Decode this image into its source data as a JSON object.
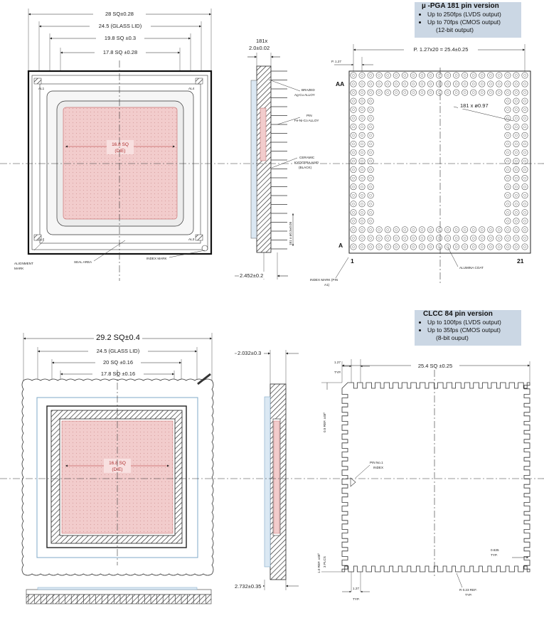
{
  "pga": {
    "box": {
      "title": "µ -PGA 181 pin version",
      "items": [
        "Up to 250fps (LVDS output)",
        "Up to 70fps (CMOS output)"
      ],
      "note": "(12-bit output)"
    },
    "top_view": {
      "dim_overall": "28 SQ±0.28",
      "dim_glass": "24.5 (GLASS LID)",
      "dim_inner": "19.8 SQ ±0.3",
      "dim_cavity": "17.8 SQ ±0.28",
      "die_label": "16.8 SQ",
      "die_sub": "(DIE)",
      "al": [
        "AL1",
        "AL4",
        "AL2",
        "AL3"
      ],
      "alignment_mark": [
        "ALIGNMENT",
        "MARK"
      ],
      "seal_area": "SEAL AREA",
      "index_mark": "INDEX MARK"
    },
    "side_view": {
      "pins": "181x",
      "pin_dim": "2.0±0.02",
      "brazed": [
        "BRAZED",
        "Ag-Cu ALLOY"
      ],
      "pin": [
        "PIN",
        "Fe-Ni-Co ALLOY"
      ],
      "ceramic": [
        "CERAMIC",
        "KYOCERA A440",
        "(BLACK)"
      ],
      "vert_dim": "181 x ø0.3±0.05",
      "bottom_dim": "2.452±0.2"
    },
    "pin_view": {
      "pitch": "P. 1.27",
      "pitch_total": "P. 1.27x20 = 25.4±0.25",
      "row_top": "AA",
      "row_bottom": "A",
      "col_left": "1",
      "col_right": "21",
      "hole": "181 x ø0.97",
      "index_mark": [
        "INDEX MARK (PIN",
        "A1)"
      ],
      "coat": "ALUMINA COAT"
    }
  },
  "clcc": {
    "box": {
      "title": "CLCC 84 pin version",
      "items": [
        "Up to 100fps (LVDS output)",
        "Up to 35fps (CMOS output)"
      ],
      "note": "(8-bit ouput)"
    },
    "top_view": {
      "dim_overall": "29.2 SQ±0.4",
      "dim_glass": "24.5 (GLASS LID)",
      "dim_inner": "20 SQ ±0.16",
      "dim_cavity": "17.8 SQ ±0.16",
      "die_label": "16.8 SQ",
      "die_sub": "(DIE)"
    },
    "side_view": {
      "dim_top": "2.032±0.3",
      "dim_bottom": "2.732±0.35"
    },
    "pad_view": {
      "pitch": "1.27",
      "typ": "TYP.",
      "dim_total": "25.4 SQ ±0.25",
      "ref_top": "0.5 REF. x45º",
      "ref_bottom": "1.0 REF. x45º",
      "plcs": "3 PLCS",
      "pin1": [
        "PIN No.1",
        "INDEX"
      ],
      "pad_w": "0.635",
      "pad_typ": "TYP.",
      "radius": "R 0.23 REF.",
      "radius_typ": "TYP.",
      "pitch_bottom": "1.27",
      "typ_bottom": "TYP."
    }
  },
  "colors": {
    "die_fill": "#f2cccc",
    "info_box": "#cbd7e4",
    "lid_blue": "#7fa8c8"
  }
}
